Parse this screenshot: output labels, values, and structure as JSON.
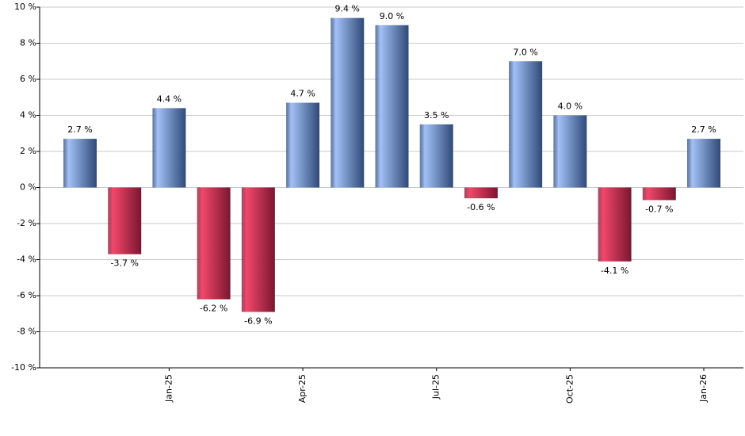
{
  "chart_data": {
    "type": "bar",
    "categories": [
      null,
      null,
      "Jan-25",
      null,
      null,
      "Apr-25",
      null,
      null,
      "Jul-25",
      null,
      null,
      "Oct-25",
      null,
      null,
      "Jan-26"
    ],
    "values": [
      2.7,
      -3.7,
      4.4,
      -6.2,
      -6.9,
      4.7,
      9.4,
      9.0,
      3.5,
      -0.6,
      7.0,
      4.0,
      -4.1,
      -0.7,
      2.7
    ],
    "value_labels": [
      "2.7 %",
      "-3.7 %",
      "4.4 %",
      "-6.2 %",
      "-6.9 %",
      "4.7 %",
      "9.4 %",
      "9.0 %",
      "3.5 %",
      "-0.6 %",
      "7.0 %",
      "4.0 %",
      "-4.1 %",
      "-0.7 %",
      "2.7 %"
    ],
    "colors": {
      "positive": [
        "#a3c1f7",
        "#2f4a78"
      ],
      "negative": [
        "#f2476a",
        "#7a1630"
      ]
    },
    "ylim": [
      -10,
      10
    ],
    "yticks": [
      {
        "value": -10,
        "label": "-10 %"
      },
      {
        "value": -8,
        "label": "-8 %"
      },
      {
        "value": -6,
        "label": "-6 %"
      },
      {
        "value": -4,
        "label": "-4 %"
      },
      {
        "value": -2,
        "label": "-2 %"
      },
      {
        "value": 0,
        "label": "0 %"
      },
      {
        "value": 2,
        "label": "2 %"
      },
      {
        "value": 4,
        "label": "4 %"
      },
      {
        "value": 6,
        "label": "6 %"
      },
      {
        "value": 8,
        "label": "8 %"
      },
      {
        "value": 10,
        "label": "10 %"
      }
    ],
    "grid": true
  }
}
